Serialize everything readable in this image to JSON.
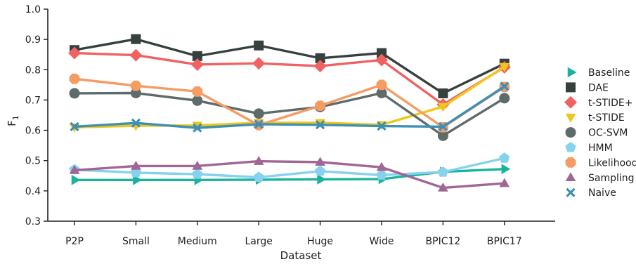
{
  "chart_data": {
    "type": "line",
    "xlabel": "Dataset",
    "ylabel": "F",
    "ylabel_subscript": "1",
    "ylim": [
      0.3,
      1.0
    ],
    "yticks": [
      "0.3",
      "0.4",
      "0.5",
      "0.6",
      "0.7",
      "0.8",
      "0.9",
      "1.0"
    ],
    "categories": [
      "P2P",
      "Small",
      "Medium",
      "Large",
      "Huge",
      "Wide",
      "BPIC12",
      "BPIC17"
    ],
    "grid": false,
    "legend_position": "right",
    "series": [
      {
        "name": "Baseline",
        "color": "#1ab3a0",
        "marker": "triangle-right",
        "values": [
          0.436,
          0.436,
          0.436,
          0.437,
          0.438,
          0.439,
          0.463,
          0.472
        ]
      },
      {
        "name": "DAE",
        "color": "#35403f",
        "marker": "square",
        "values": [
          0.865,
          0.901,
          0.845,
          0.88,
          0.838,
          0.855,
          0.722,
          0.82
        ]
      },
      {
        "name": "t-STIDE+",
        "color": "#f06262",
        "marker": "diamond",
        "values": [
          0.855,
          0.848,
          0.817,
          0.821,
          0.812,
          0.832,
          0.685,
          0.808
        ]
      },
      {
        "name": "t-STIDE",
        "color": "#f2c619",
        "marker": "triangle-down",
        "values": [
          0.61,
          0.615,
          0.616,
          0.625,
          0.625,
          0.618,
          0.678,
          0.81
        ]
      },
      {
        "name": "OC-SVM",
        "color": "#5f6b6b",
        "marker": "circle",
        "values": [
          0.722,
          0.723,
          0.698,
          0.655,
          0.677,
          0.723,
          0.582,
          0.706
        ]
      },
      {
        "name": "HMM",
        "color": "#86d2ee",
        "marker": "pentagon",
        "values": [
          0.47,
          0.46,
          0.455,
          0.445,
          0.465,
          0.452,
          0.462,
          0.508
        ]
      },
      {
        "name": "Likelihood",
        "color": "#f69b64",
        "marker": "octagon",
        "values": [
          0.77,
          0.747,
          0.728,
          0.617,
          0.681,
          0.75,
          0.61,
          0.743
        ]
      },
      {
        "name": "Sampling",
        "color": "#a06795",
        "marker": "triangle-up",
        "values": [
          0.468,
          0.482,
          0.482,
          0.498,
          0.495,
          0.478,
          0.41,
          0.425
        ]
      },
      {
        "name": "Naive",
        "color": "#3c90b5",
        "marker": "x",
        "values": [
          0.612,
          0.624,
          0.608,
          0.62,
          0.618,
          0.614,
          0.612,
          0.745
        ]
      }
    ]
  }
}
